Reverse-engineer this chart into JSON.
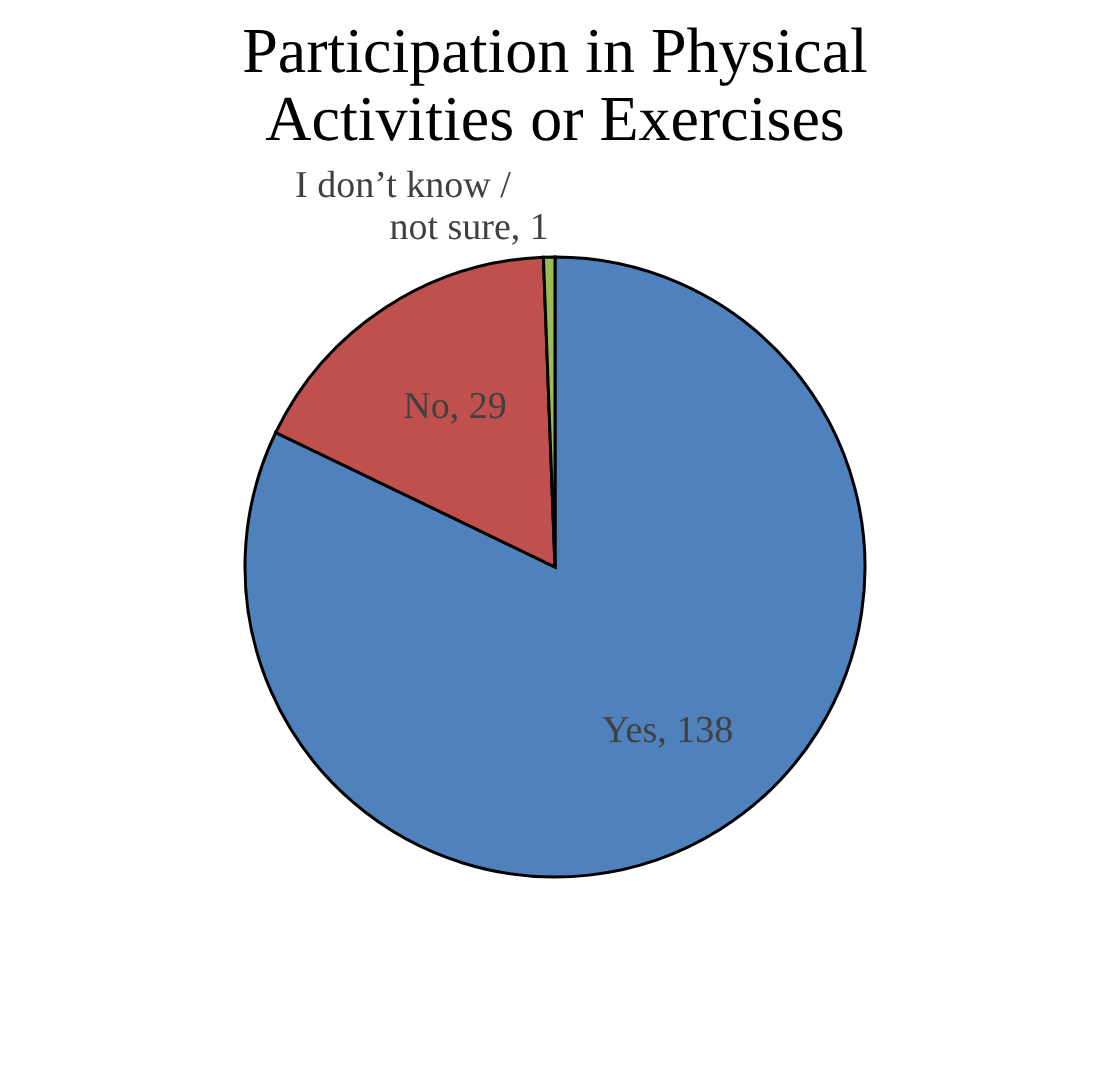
{
  "chart_data": {
    "type": "pie",
    "title": "Participation in Physical Activities or Exercises",
    "categories": [
      "Yes",
      "No",
      "I don’t know / not sure"
    ],
    "values": [
      138,
      29,
      1
    ],
    "colors": [
      "#4f81bd",
      "#c0504d",
      "#9bbb59"
    ],
    "value_labels": [
      ", 138",
      ", 29",
      ", 1"
    ],
    "legend": false
  }
}
